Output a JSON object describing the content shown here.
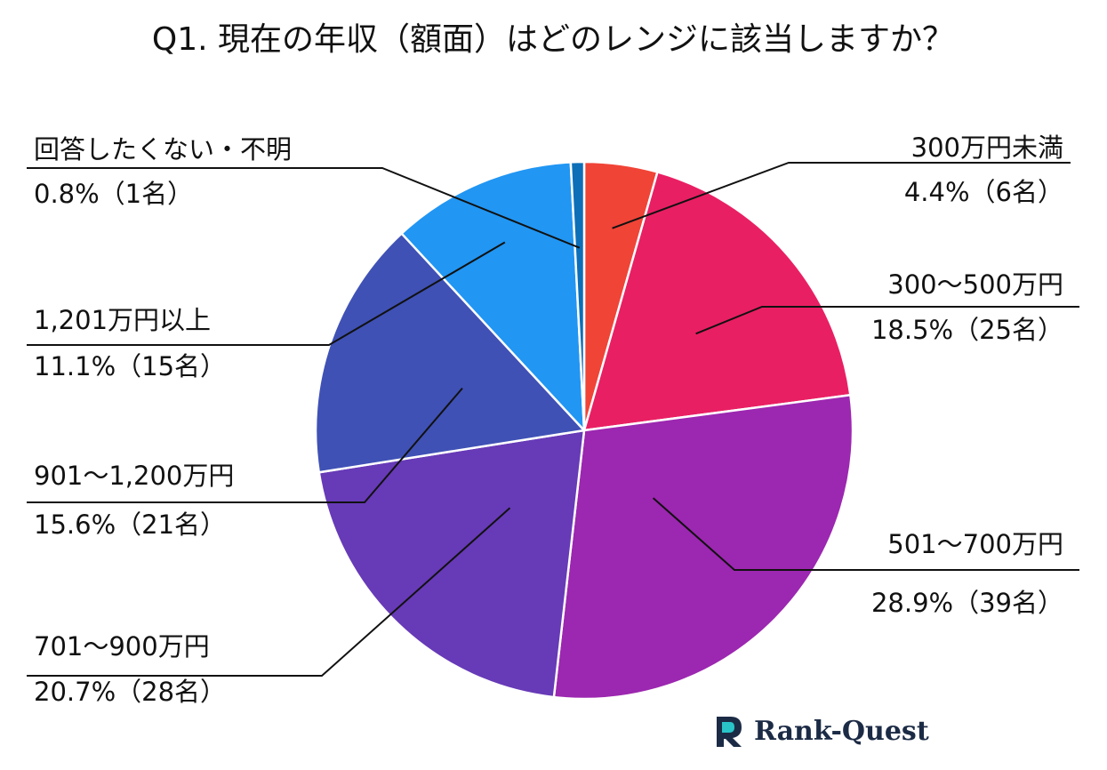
{
  "chart_data": {
    "type": "pie",
    "title": "Q1. 現在の年収（額面）はどのレンジに該当しますか？",
    "start_angle_deg": 0,
    "direction": "clockwise",
    "slices": [
      {
        "label": "300万円未満",
        "value": 4.4,
        "count_text": "4.4%（6名）",
        "color": "#f04437"
      },
      {
        "label": "300～500万円",
        "value": 18.5,
        "count_text": "18.5%（25名）",
        "color": "#e91f63"
      },
      {
        "label": "501～700万円",
        "value": 28.9,
        "count_text": "28.9%（39名）",
        "color": "#9c27b0"
      },
      {
        "label": "701～900万円",
        "value": 20.7,
        "count_text": "20.7%（28名）",
        "color": "#673ab7"
      },
      {
        "label": "901～1,200万円",
        "value": 15.6,
        "count_text": "15.6%（21名）",
        "color": "#3f51b5"
      },
      {
        "label": "1,201万円以上",
        "value": 11.1,
        "count_text": "11.1%（15名）",
        "color": "#2196f3"
      },
      {
        "label": "回答したくない・不明",
        "value": 0.8,
        "count_text": "0.8%（1名）",
        "color": "#0c6fb8"
      }
    ],
    "legend": "none"
  },
  "logo": {
    "text": "Rank-Quest",
    "mark_color": "#1c2b45",
    "accent_color": "#29c4c8"
  }
}
